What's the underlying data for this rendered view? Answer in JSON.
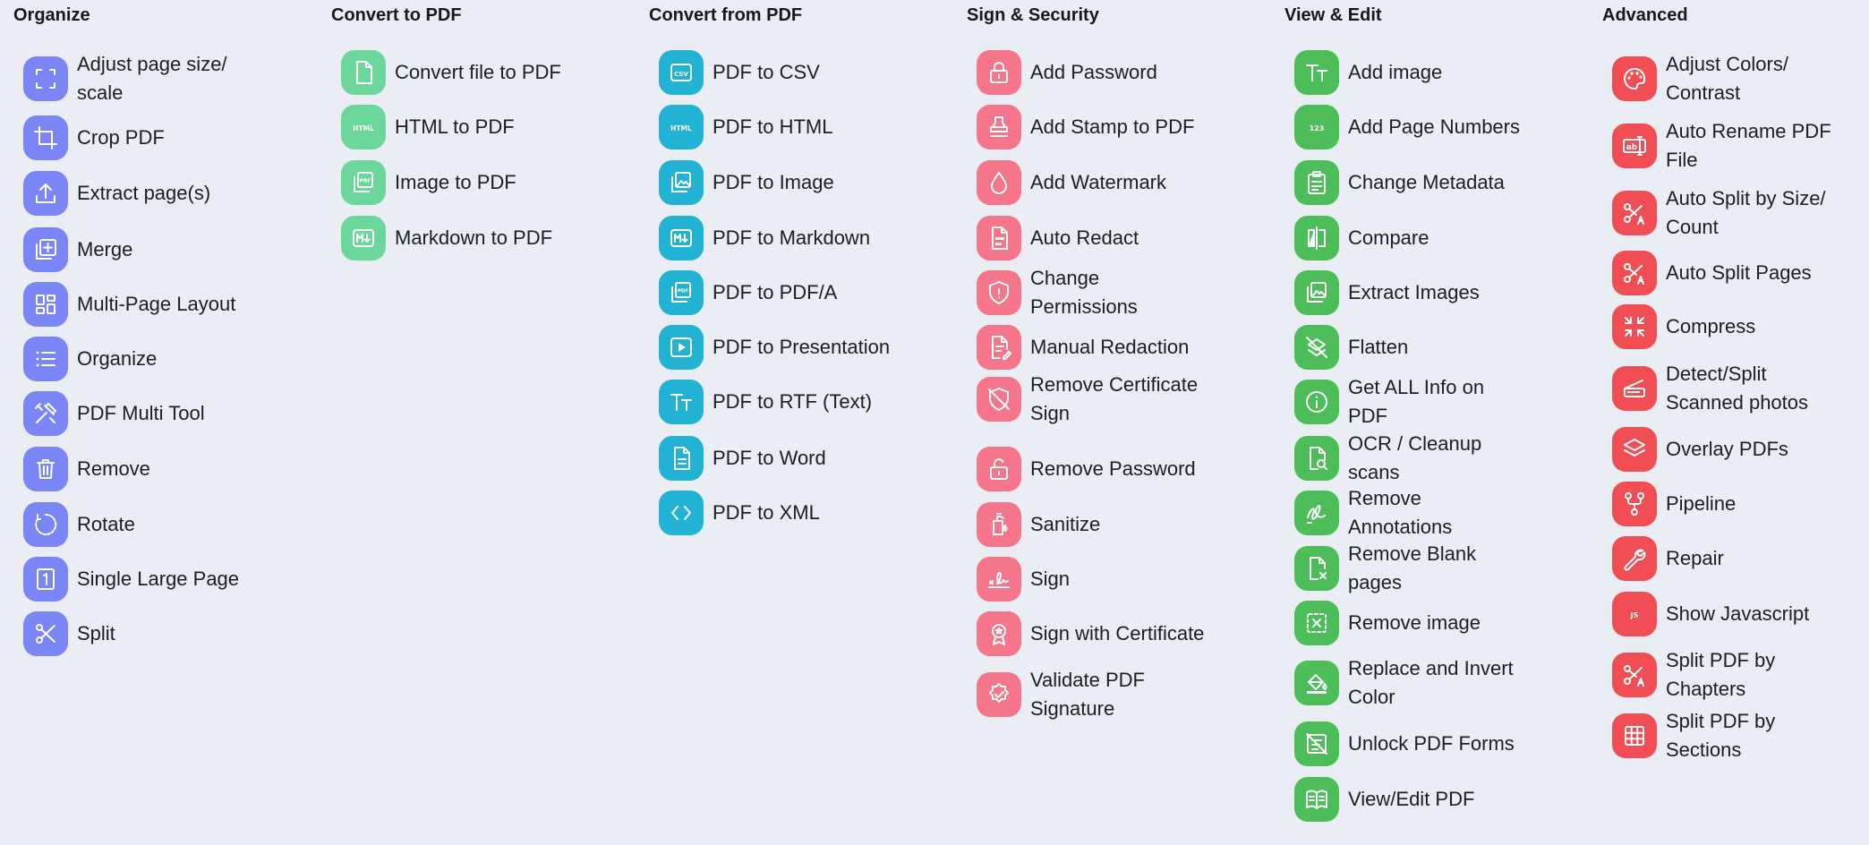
{
  "columns": [
    {
      "title": "Organize",
      "color": "#7b86f6",
      "tools": [
        {
          "label": "Adjust page size/ scale",
          "icon": "scale-icon",
          "name": "adjust-page-size"
        },
        {
          "label": "Crop PDF",
          "icon": "crop-icon",
          "name": "crop-pdf"
        },
        {
          "label": "Extract page(s)",
          "icon": "extract-icon",
          "name": "extract-pages"
        },
        {
          "label": "Merge",
          "icon": "merge-icon",
          "name": "merge"
        },
        {
          "label": "Multi-Page Layout",
          "icon": "grid-icon",
          "name": "multi-page-layout"
        },
        {
          "label": "Organize",
          "icon": "list-icon",
          "name": "organize"
        },
        {
          "label": "PDF Multi Tool",
          "icon": "tools-icon",
          "name": "pdf-multi-tool"
        },
        {
          "label": "Remove",
          "icon": "trash-icon",
          "name": "remove"
        },
        {
          "label": "Rotate",
          "icon": "rotate-icon",
          "name": "rotate"
        },
        {
          "label": "Single Large Page",
          "icon": "page-one-icon",
          "name": "single-large-page"
        },
        {
          "label": "Split",
          "icon": "scissors-icon",
          "name": "split"
        }
      ]
    },
    {
      "title": "Convert to PDF",
      "color": "#6cd79a",
      "tools": [
        {
          "label": "Convert file to PDF",
          "icon": "file-icon",
          "name": "convert-file-to-pdf"
        },
        {
          "label": "HTML to PDF",
          "icon": "html-icon",
          "name": "html-to-pdf"
        },
        {
          "label": "Image to PDF",
          "icon": "image-pdf-icon",
          "name": "image-to-pdf"
        },
        {
          "label": "Markdown to PDF",
          "icon": "markdown-icon",
          "name": "markdown-to-pdf"
        }
      ]
    },
    {
      "title": "Convert from PDF",
      "color": "#22b2d3",
      "tools": [
        {
          "label": "PDF to CSV",
          "icon": "csv-icon",
          "name": "pdf-to-csv"
        },
        {
          "label": "PDF to HTML",
          "icon": "html-icon",
          "name": "pdf-to-html"
        },
        {
          "label": "PDF to Image",
          "icon": "image-icon",
          "name": "pdf-to-image"
        },
        {
          "label": "PDF to Markdown",
          "icon": "markdown-icon",
          "name": "pdf-to-markdown"
        },
        {
          "label": "PDF to PDF/A",
          "icon": "pdfa-icon",
          "name": "pdf-to-pdfa"
        },
        {
          "label": "PDF to Presentation",
          "icon": "play-icon",
          "name": "pdf-to-presentation"
        },
        {
          "label": "PDF to RTF (Text)",
          "icon": "text-icon",
          "name": "pdf-to-rtf"
        },
        {
          "label": "PDF to Word",
          "icon": "doc-icon",
          "name": "pdf-to-word"
        },
        {
          "label": "PDF to XML",
          "icon": "code-icon",
          "name": "pdf-to-xml"
        }
      ]
    },
    {
      "title": "Sign & Security",
      "color": "#f5768b",
      "tools": [
        {
          "label": "Add Password",
          "icon": "lock-icon",
          "name": "add-password"
        },
        {
          "label": "Add Stamp to PDF",
          "icon": "stamp-icon",
          "name": "add-stamp"
        },
        {
          "label": "Add Watermark",
          "icon": "drop-icon",
          "name": "add-watermark"
        },
        {
          "label": "Auto Redact",
          "icon": "redact-icon",
          "name": "auto-redact"
        },
        {
          "label": "Change Permissions",
          "icon": "shield-icon",
          "name": "change-permissions"
        },
        {
          "label": "Manual Redaction",
          "icon": "edit-doc-icon",
          "name": "manual-redaction"
        },
        {
          "label": "Remove Certificate Sign",
          "icon": "shield-off-icon",
          "name": "remove-certificate-sign"
        },
        {
          "label": "Remove Password",
          "icon": "unlock-icon",
          "name": "remove-password"
        },
        {
          "label": "Sanitize",
          "icon": "sanitize-icon",
          "name": "sanitize"
        },
        {
          "label": "Sign",
          "icon": "signature-icon",
          "name": "sign"
        },
        {
          "label": "Sign with Certificate",
          "icon": "certificate-icon",
          "name": "sign-with-certificate"
        },
        {
          "label": "Validate PDF Signature",
          "icon": "verified-icon",
          "name": "validate-signature"
        }
      ]
    },
    {
      "title": "View & Edit",
      "color": "#4cbd58",
      "tools": [
        {
          "label": "Add image",
          "icon": "text-icon",
          "name": "add-image"
        },
        {
          "label": "Add Page Numbers",
          "icon": "numbers-icon",
          "name": "add-page-numbers"
        },
        {
          "label": "Change Metadata",
          "icon": "clipboard-icon",
          "name": "change-metadata"
        },
        {
          "label": "Compare",
          "icon": "compare-icon",
          "name": "compare"
        },
        {
          "label": "Extract Images",
          "icon": "image-icon",
          "name": "extract-images"
        },
        {
          "label": "Flatten",
          "icon": "layers-off-icon",
          "name": "flatten"
        },
        {
          "label": "Get ALL Info on PDF",
          "icon": "info-icon",
          "name": "get-all-info"
        },
        {
          "label": "OCR / Cleanup scans",
          "icon": "ocr-icon",
          "name": "ocr-cleanup"
        },
        {
          "label": "Remove Annotations",
          "icon": "scribble-icon",
          "name": "remove-annotations"
        },
        {
          "label": "Remove Blank pages",
          "icon": "blank-page-icon",
          "name": "remove-blank-pages"
        },
        {
          "label": "Remove image",
          "icon": "remove-image-icon",
          "name": "remove-image"
        },
        {
          "label": "Replace and Invert Color",
          "icon": "paint-bucket-icon",
          "name": "replace-invert-color"
        },
        {
          "label": "Unlock PDF Forms",
          "icon": "form-off-icon",
          "name": "unlock-pdf-forms"
        },
        {
          "label": "View/Edit PDF",
          "icon": "book-icon",
          "name": "view-edit-pdf"
        }
      ]
    },
    {
      "title": "Advanced",
      "color": "#f04e54",
      "tools": [
        {
          "label": "Adjust Colors/ Contrast",
          "icon": "palette-icon",
          "name": "adjust-colors"
        },
        {
          "label": "Auto Rename PDF File",
          "icon": "rename-icon",
          "name": "auto-rename"
        },
        {
          "label": "Auto Split by Size/ Count",
          "icon": "scissors-a-icon",
          "name": "auto-split-size"
        },
        {
          "label": "Auto Split Pages",
          "icon": "scissors-a-icon",
          "name": "auto-split-pages"
        },
        {
          "label": "Compress",
          "icon": "compress-icon",
          "name": "compress"
        },
        {
          "label": "Detect/Split Scanned photos",
          "icon": "scanner-icon",
          "name": "detect-split-scanned"
        },
        {
          "label": "Overlay PDFs",
          "icon": "layers-icon",
          "name": "overlay-pdfs"
        },
        {
          "label": "Pipeline",
          "icon": "fork-icon",
          "name": "pipeline"
        },
        {
          "label": "Repair",
          "icon": "wrench-icon",
          "name": "repair"
        },
        {
          "label": "Show Javascript",
          "icon": "js-icon",
          "name": "show-javascript"
        },
        {
          "label": "Split PDF by Chapters",
          "icon": "scissors-a-icon",
          "name": "split-by-chapters"
        },
        {
          "label": "Split PDF by Sections",
          "icon": "table-icon",
          "name": "split-by-sections"
        }
      ]
    }
  ]
}
